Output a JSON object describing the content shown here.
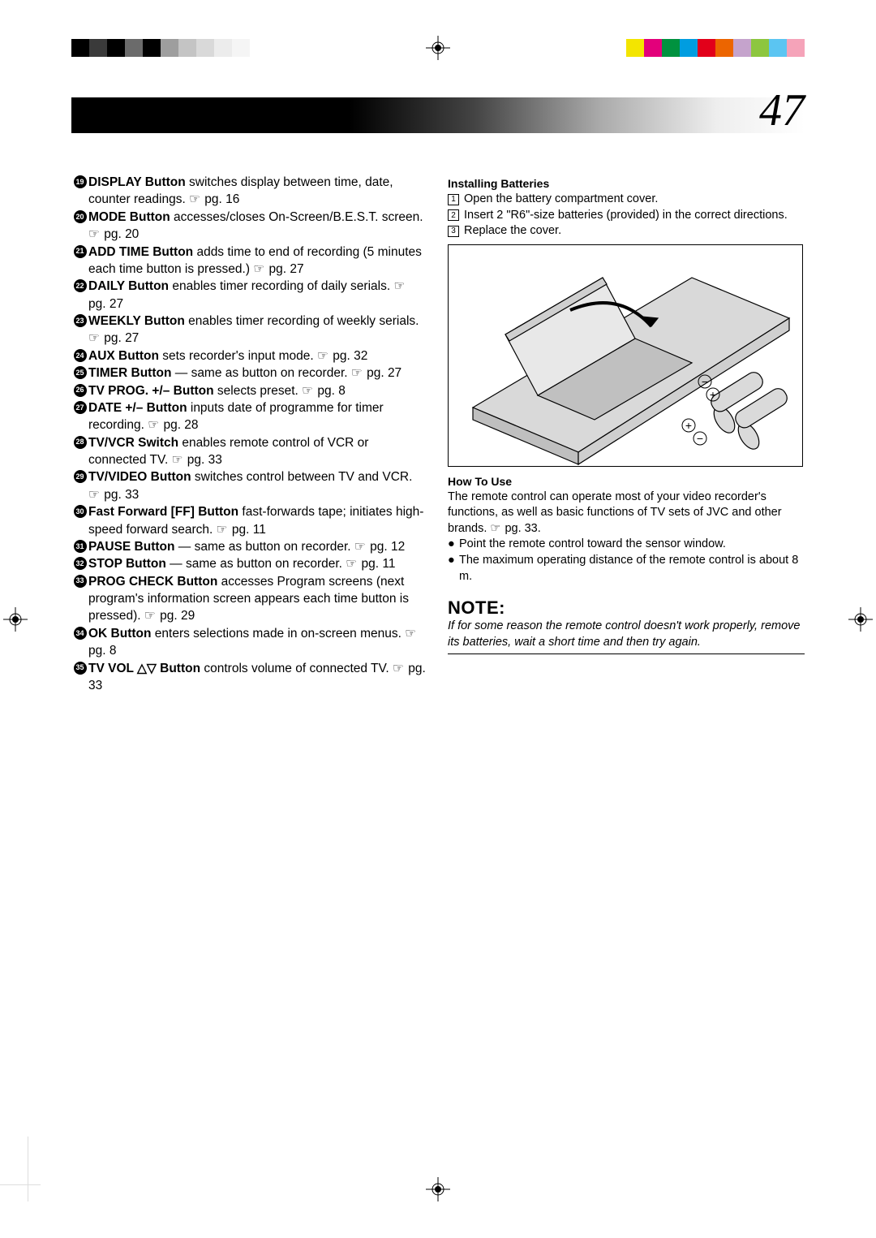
{
  "page_number": "47",
  "color_bars": {
    "left_group": [
      "#000000",
      "#3a3a3a",
      "#000000",
      "#6b6b6b",
      "#000000",
      "#9e9e9e",
      "#c4c4c4",
      "#d9d9d9",
      "#ececec",
      "#f5f5f5"
    ],
    "right_group": [
      "#f3e500",
      "#e3007b",
      "#00923f",
      "#009de0",
      "#e2001a",
      "#ec6500",
      "#c5a3cc",
      "#8dc63f",
      "#5bc5f2",
      "#f5a3b9"
    ]
  },
  "left_items": [
    {
      "n": "19",
      "bold": "DISPLAY Button",
      "rest": " switches display between time, date, counter readings. ",
      "pg": "pg. 16"
    },
    {
      "n": "20",
      "bold": "MODE Button",
      "rest": " accesses/closes On-Screen/B.E.S.T. screen. ",
      "pg": "pg. 20"
    },
    {
      "n": "21",
      "bold": "ADD TIME Button",
      "rest": " adds time to end of recording (5 minutes each time button is pressed.) ",
      "pg": "pg. 27"
    },
    {
      "n": "22",
      "bold": "DAILY Button",
      "rest": " enables timer recording of daily serials. ",
      "pg": "pg. 27"
    },
    {
      "n": "23",
      "bold": "WEEKLY Button",
      "rest": " enables timer recording of weekly serials. ",
      "pg": "pg. 27"
    },
    {
      "n": "24",
      "bold": "AUX Button",
      "rest": " sets recorder's input mode. ",
      "pg": "pg. 32"
    },
    {
      "n": "25",
      "bold": "TIMER Button",
      "rest": " — same as button on recorder. ",
      "pg": "pg. 27"
    },
    {
      "n": "26",
      "bold": "TV PROG. +/– Button",
      "rest": " selects preset. ",
      "pg": "pg. 8"
    },
    {
      "n": "27",
      "bold": "DATE +/– Button",
      "rest": " inputs date of programme for timer recording. ",
      "pg": "pg. 28"
    },
    {
      "n": "28",
      "bold": "TV/VCR Switch",
      "rest": " enables remote control of VCR or connected TV. ",
      "pg": "pg. 33"
    },
    {
      "n": "29",
      "bold": "TV/VIDEO Button",
      "rest": " switches control between TV and VCR. ",
      "pg": "pg. 33"
    },
    {
      "n": "30",
      "bold": "Fast Forward [FF] Button",
      "rest": " fast-forwards tape; initiates high-speed forward search. ",
      "pg": "pg. 11"
    },
    {
      "n": "31",
      "bold": "PAUSE Button",
      "rest": " — same as button on recorder. ",
      "pg": "pg. 12"
    },
    {
      "n": "32",
      "bold": "STOP Button",
      "rest": " — same as button on recorder. ",
      "pg": "pg. 11"
    },
    {
      "n": "33",
      "bold": "PROG CHECK Button",
      "rest": " accesses Program screens (next program's information screen appears each time button is pressed). ",
      "pg": "pg. 29"
    },
    {
      "n": "34",
      "bold": "OK Button",
      "rest": " enters selections made in on-screen menus. ",
      "pg": "pg. 8"
    },
    {
      "n": "35",
      "bold": "TV VOL △▽ Button",
      "rest": " controls volume of connected TV. ",
      "pg": "pg. 33"
    }
  ],
  "right": {
    "install_title": "Installing Batteries",
    "steps": [
      {
        "n": "1",
        "text": "Open the battery compartment cover."
      },
      {
        "n": "2",
        "text": "Insert 2 \"R6\"-size batteries (provided) in the correct directions."
      },
      {
        "n": "3",
        "text": "Replace the cover."
      }
    ],
    "howto_title": "How To Use",
    "howto_body": "The remote control can operate most of your video recorder's functions, as well as basic functions of TV sets of JVC and other brands. ",
    "howto_pg": "pg. 33.",
    "bullets": [
      "Point the remote control toward the sensor window.",
      "The maximum operating distance of the remote control is about 8 m."
    ],
    "note_title": "NOTE:",
    "note_body": "If for some reason the remote control doesn't work properly, remove its batteries, wait a short time and then try again."
  },
  "pointer_glyph": "☞"
}
